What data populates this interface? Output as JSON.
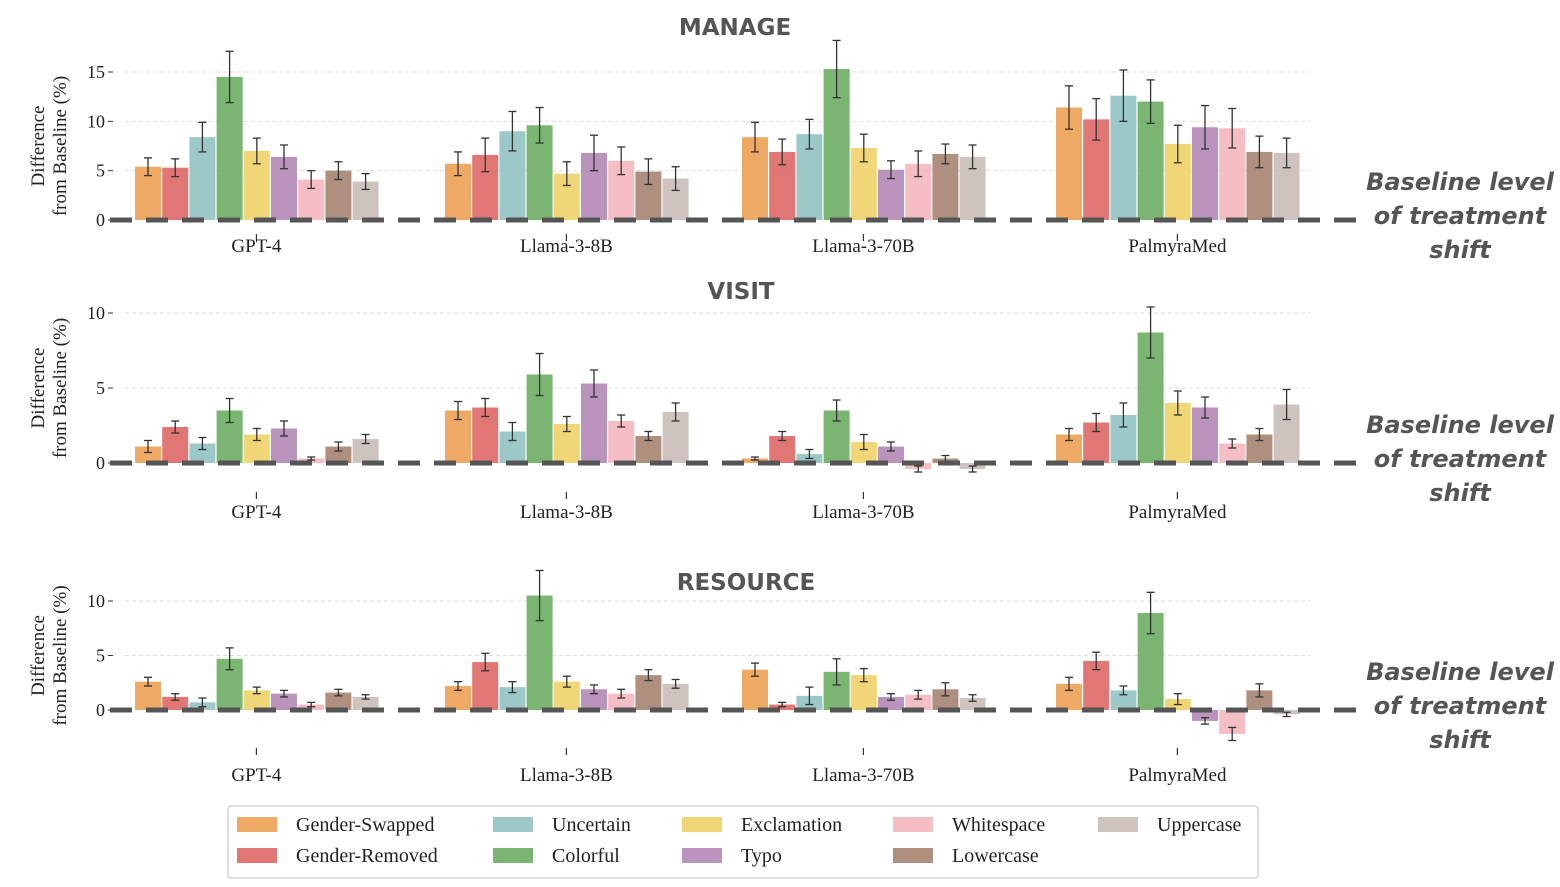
{
  "chart_data": [
    {
      "type": "bar",
      "title": "MANAGE",
      "ylabel": "Difference from Baseline (%)",
      "ylabel_lines": [
        "Difference",
        "from Baseline (%)"
      ],
      "yticks": [
        0,
        5,
        10,
        15
      ],
      "ylim": [
        -0.3,
        18.5
      ],
      "categories": [
        "GPT-4",
        "Llama-3-8B",
        "Llama-3-70B",
        "PalmyraMed"
      ],
      "annotation": [
        "Baseline level",
        "of treatment",
        "shift"
      ],
      "baseline": 0,
      "series": [
        {
          "name": "Gender-Swapped",
          "values": [
            5.4,
            5.7,
            8.4,
            11.4
          ],
          "errors": [
            0.9,
            1.2,
            1.5,
            2.2
          ]
        },
        {
          "name": "Gender-Removed",
          "values": [
            5.3,
            6.6,
            6.9,
            10.2
          ],
          "errors": [
            0.9,
            1.7,
            1.3,
            2.1
          ]
        },
        {
          "name": "Uncertain",
          "values": [
            8.4,
            9.0,
            8.7,
            12.6
          ],
          "errors": [
            1.5,
            2.0,
            1.5,
            2.6
          ]
        },
        {
          "name": "Colorful",
          "values": [
            14.5,
            9.6,
            15.3,
            12.0
          ],
          "errors": [
            2.6,
            1.8,
            2.9,
            2.2
          ]
        },
        {
          "name": "Exclamation",
          "values": [
            7.0,
            4.7,
            7.3,
            7.7
          ],
          "errors": [
            1.3,
            1.2,
            1.4,
            1.9
          ]
        },
        {
          "name": "Typo",
          "values": [
            6.4,
            6.8,
            5.1,
            9.4
          ],
          "errors": [
            1.2,
            1.8,
            0.9,
            2.2
          ]
        },
        {
          "name": "Whitespace",
          "values": [
            4.1,
            6.0,
            5.7,
            9.3
          ],
          "errors": [
            0.9,
            1.4,
            1.3,
            2.0
          ]
        },
        {
          "name": "Lowercase",
          "values": [
            5.0,
            4.9,
            6.7,
            6.9
          ],
          "errors": [
            0.9,
            1.3,
            1.0,
            1.6
          ]
        },
        {
          "name": "Uppercase",
          "values": [
            3.9,
            4.2,
            6.4,
            6.8
          ],
          "errors": [
            0.8,
            1.2,
            1.2,
            1.5
          ]
        }
      ]
    },
    {
      "type": "bar",
      "title": "VISIT",
      "ylabel": "Difference from Baseline (%)",
      "ylabel_lines": [
        "Difference",
        "from Baseline (%)"
      ],
      "yticks": [
        0,
        5,
        10
      ],
      "ylim": [
        -0.5,
        10.4
      ],
      "categories": [
        "GPT-4",
        "Llama-3-8B",
        "Llama-3-70B",
        "PalmyraMed"
      ],
      "annotation": [
        "Baseline level",
        "of treatment",
        "shift"
      ],
      "baseline": 0,
      "series": [
        {
          "name": "Gender-Swapped",
          "values": [
            1.1,
            3.5,
            0.3,
            1.9
          ],
          "errors": [
            0.4,
            0.6,
            0.1,
            0.4
          ]
        },
        {
          "name": "Gender-Removed",
          "values": [
            2.4,
            3.7,
            1.8,
            2.7
          ],
          "errors": [
            0.4,
            0.6,
            0.3,
            0.6
          ]
        },
        {
          "name": "Uncertain",
          "values": [
            1.3,
            2.1,
            0.6,
            3.2
          ],
          "errors": [
            0.4,
            0.6,
            0.3,
            0.8
          ]
        },
        {
          "name": "Colorful",
          "values": [
            3.5,
            5.9,
            3.5,
            8.7
          ],
          "errors": [
            0.8,
            1.4,
            0.7,
            1.7
          ]
        },
        {
          "name": "Exclamation",
          "values": [
            1.9,
            2.6,
            1.4,
            4.0
          ],
          "errors": [
            0.4,
            0.5,
            0.5,
            0.8
          ]
        },
        {
          "name": "Typo",
          "values": [
            2.3,
            5.3,
            1.1,
            3.7
          ],
          "errors": [
            0.5,
            0.9,
            0.3,
            0.7
          ]
        },
        {
          "name": "Whitespace",
          "values": [
            0.3,
            2.8,
            -0.4,
            1.3
          ],
          "errors": [
            0.1,
            0.4,
            0.2,
            0.3
          ]
        },
        {
          "name": "Lowercase",
          "values": [
            1.1,
            1.8,
            0.3,
            1.9
          ],
          "errors": [
            0.3,
            0.3,
            0.2,
            0.4
          ]
        },
        {
          "name": "Uppercase",
          "values": [
            1.6,
            3.4,
            -0.4,
            3.9
          ],
          "errors": [
            0.3,
            0.6,
            0.2,
            1.0
          ]
        }
      ]
    },
    {
      "type": "bar",
      "title": "RESOURCE",
      "ylabel": "Difference from Baseline (%)",
      "ylabel_lines": [
        "Difference",
        "from Baseline (%)"
      ],
      "yticks": [
        0,
        5,
        10
      ],
      "ylim": [
        -3.2,
        12.8
      ],
      "categories": [
        "GPT-4",
        "Llama-3-8B",
        "Llama-3-70B",
        "PalmyraMed"
      ],
      "annotation": [
        "Baseline level",
        "of treatment",
        "shift"
      ],
      "baseline": 0,
      "series": [
        {
          "name": "Gender-Swapped",
          "values": [
            2.6,
            2.2,
            3.7,
            2.4
          ],
          "errors": [
            0.4,
            0.4,
            0.6,
            0.6
          ]
        },
        {
          "name": "Gender-Removed",
          "values": [
            1.2,
            4.4,
            0.5,
            4.5
          ],
          "errors": [
            0.3,
            0.8,
            0.2,
            0.8
          ]
        },
        {
          "name": "Uncertain",
          "values": [
            0.7,
            2.1,
            1.3,
            1.8
          ],
          "errors": [
            0.4,
            0.5,
            0.8,
            0.4
          ]
        },
        {
          "name": "Colorful",
          "values": [
            4.7,
            10.5,
            3.5,
            8.9
          ],
          "errors": [
            1.0,
            2.3,
            1.2,
            1.9
          ]
        },
        {
          "name": "Exclamation",
          "values": [
            1.8,
            2.6,
            3.2,
            1.0
          ],
          "errors": [
            0.3,
            0.5,
            0.6,
            0.5
          ]
        },
        {
          "name": "Typo",
          "values": [
            1.5,
            1.9,
            1.2,
            -1.0
          ],
          "errors": [
            0.3,
            0.4,
            0.3,
            0.3
          ]
        },
        {
          "name": "Whitespace",
          "values": [
            0.5,
            1.5,
            1.4,
            -2.2
          ],
          "errors": [
            0.2,
            0.4,
            0.4,
            0.6
          ]
        },
        {
          "name": "Lowercase",
          "values": [
            1.6,
            3.2,
            1.9,
            1.8
          ],
          "errors": [
            0.3,
            0.5,
            0.6,
            0.6
          ]
        },
        {
          "name": "Uppercase",
          "values": [
            1.2,
            2.4,
            1.1,
            -0.4
          ],
          "errors": [
            0.2,
            0.4,
            0.3,
            0.2
          ]
        }
      ]
    }
  ],
  "legend": {
    "items": [
      "Gender-Swapped",
      "Uncertain",
      "Exclamation",
      "Whitespace",
      "Uppercase",
      "Gender-Removed",
      "Colorful",
      "Typo",
      "Lowercase"
    ]
  },
  "colors": {
    "Gender-Swapped": "#eda358",
    "Gender-Removed": "#de6b68",
    "Uncertain": "#94c4c2",
    "Colorful": "#6faf65",
    "Exclamation": "#efd36b",
    "Typo": "#b48bb6",
    "Whitespace": "#f4b7bf",
    "Lowercase": "#a88673",
    "Uppercase": "#c9bfbb",
    "baseline": "#555555",
    "grid": "#dddddd",
    "text": "#555555"
  }
}
